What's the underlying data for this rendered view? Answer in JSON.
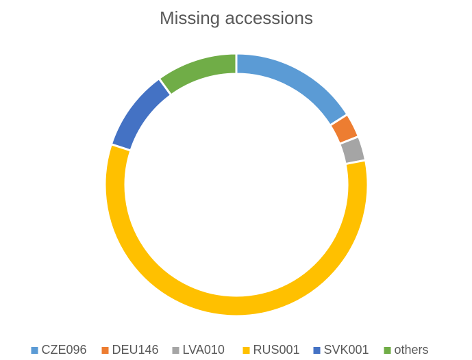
{
  "chart_data": {
    "type": "donut",
    "title": "Missing accessions",
    "categories": [
      "CZE096",
      "DEU146",
      "LVA010",
      "RUS001",
      "SVK001",
      "others"
    ],
    "values": [
      16,
      3,
      3,
      58,
      10,
      10
    ],
    "colors": [
      "#5b9bd5",
      "#ed7d31",
      "#a5a5a5",
      "#ffc000",
      "#4472c4",
      "#70ad47"
    ],
    "legend": "bottom"
  }
}
